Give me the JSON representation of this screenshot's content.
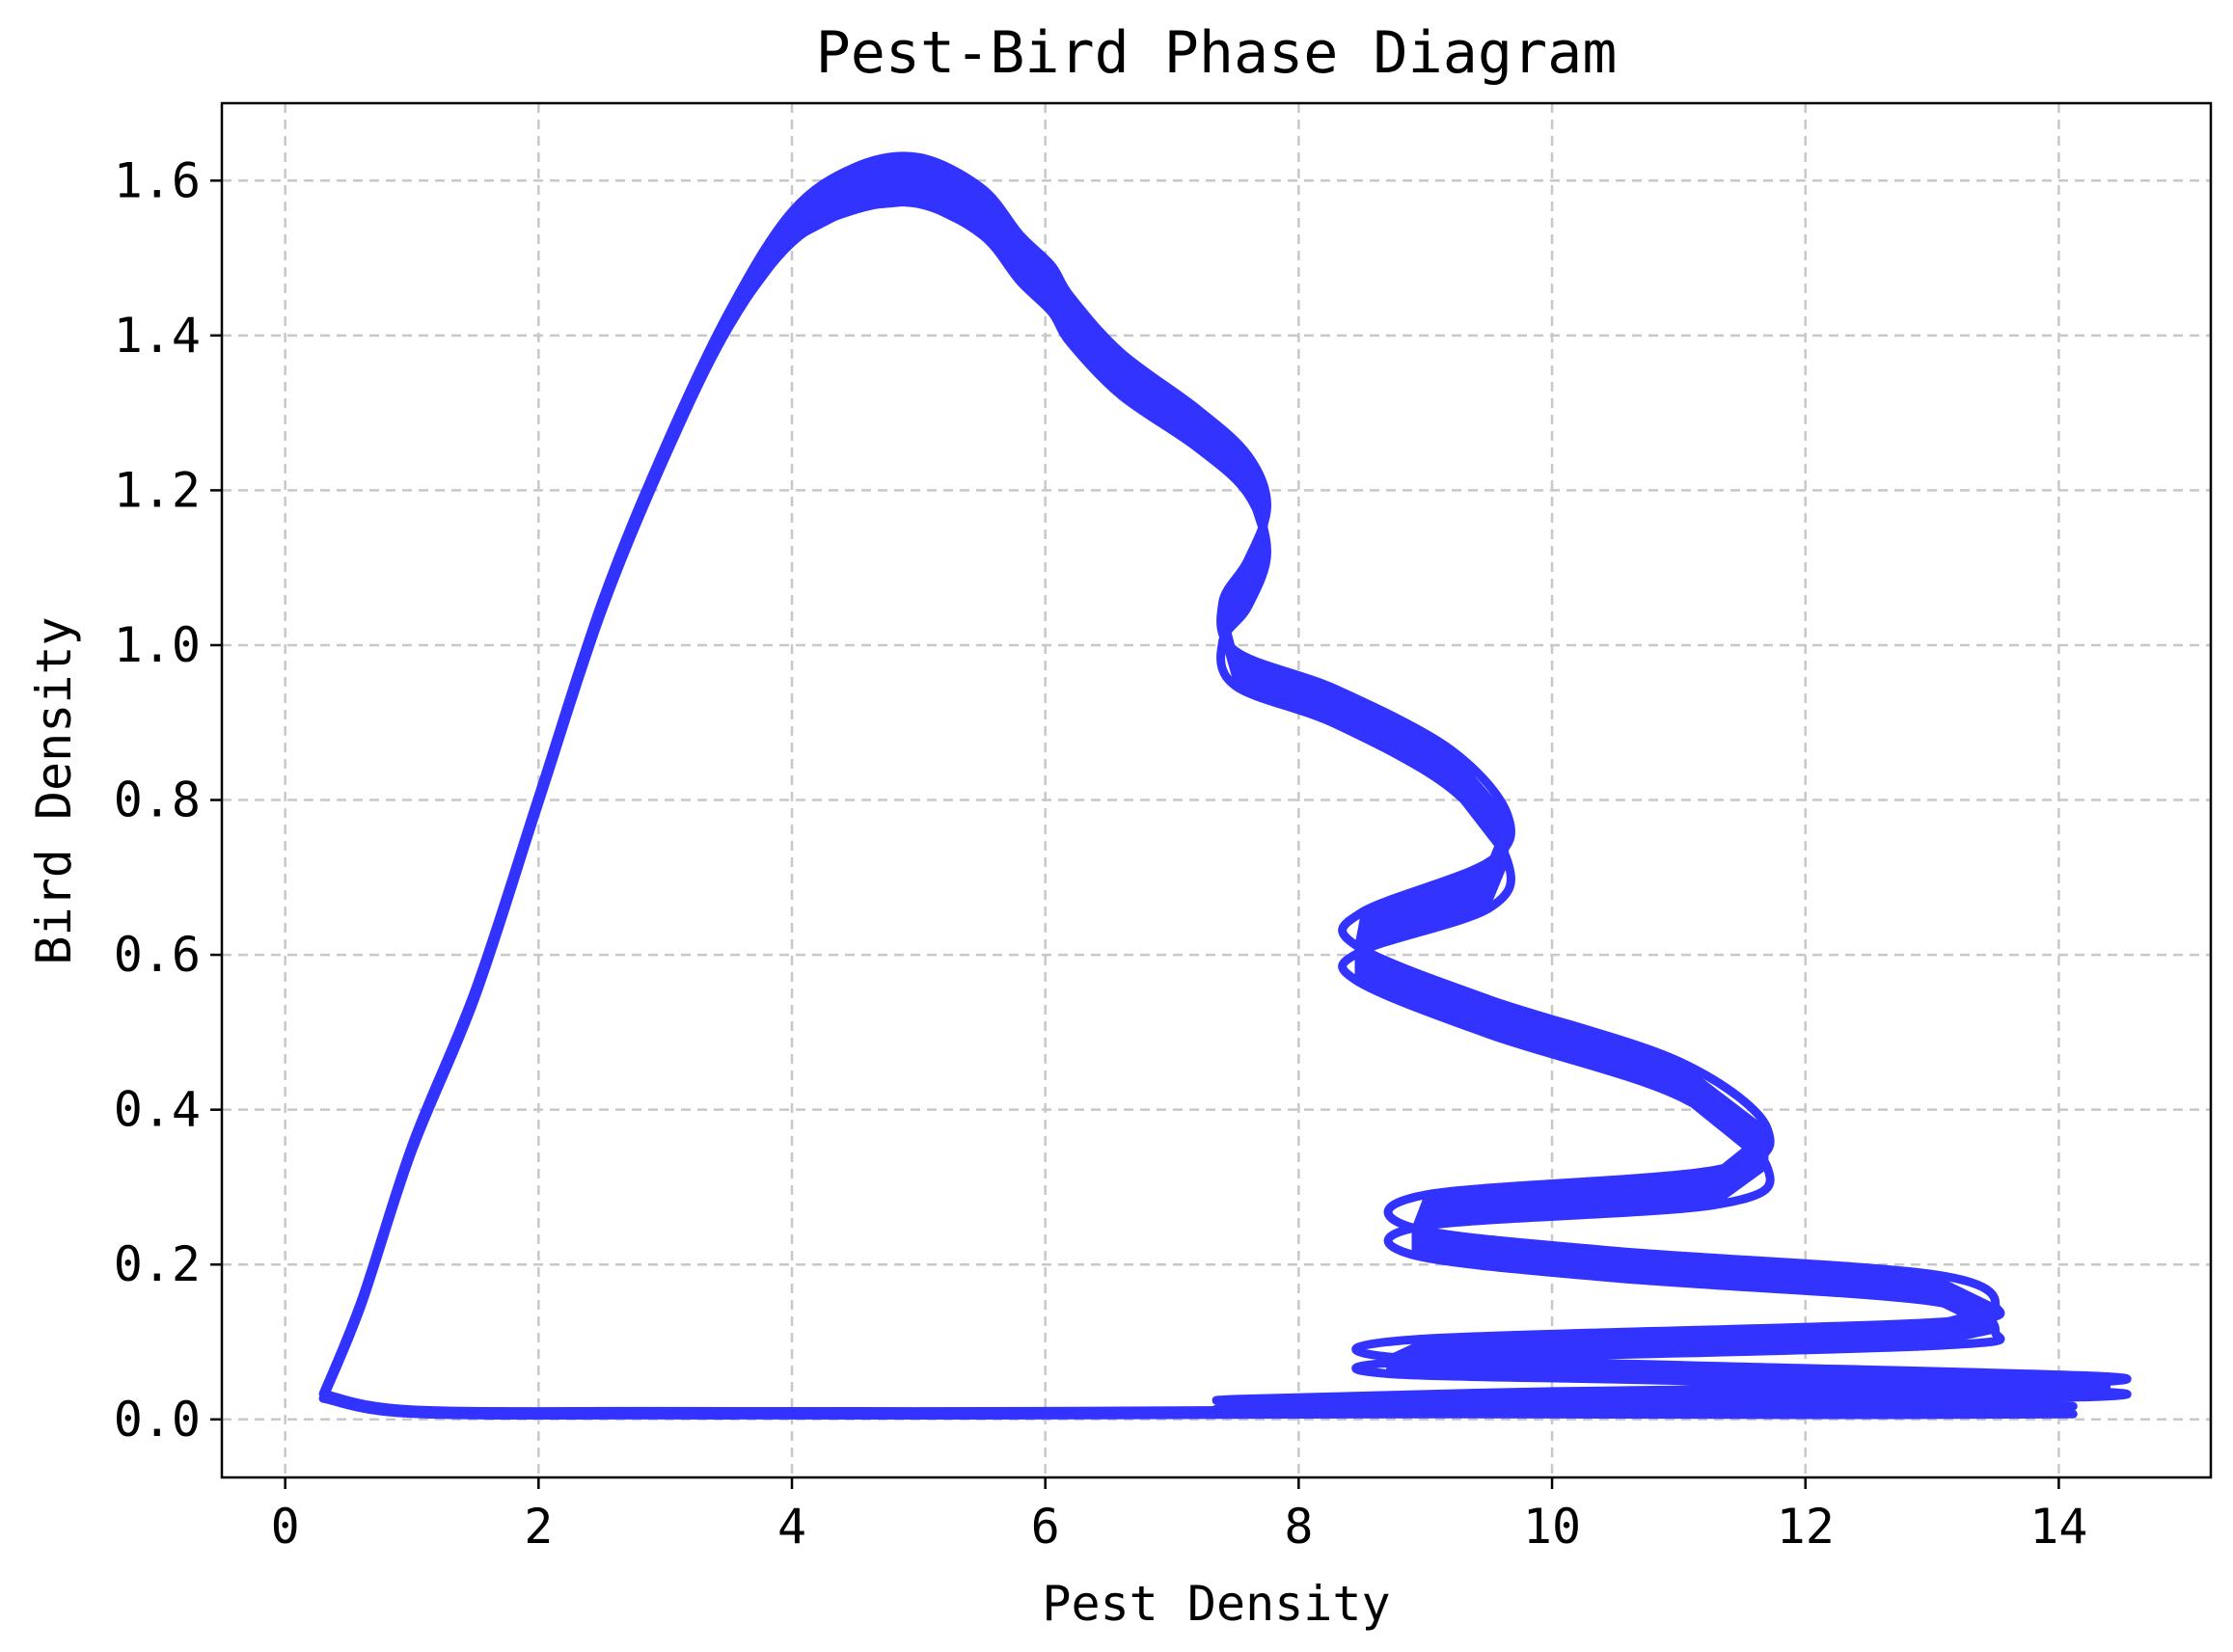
{
  "chart_data": {
    "type": "line",
    "title": "Pest-Bird Phase Diagram",
    "xlabel": "Pest Density",
    "ylabel": "Bird Density",
    "xlim": [
      -0.5,
      15.2
    ],
    "ylim": [
      -0.075,
      1.7
    ],
    "xticks": [
      0,
      2,
      4,
      6,
      8,
      10,
      12,
      14
    ],
    "xtick_labels": [
      "0",
      "2",
      "4",
      "6",
      "8",
      "10",
      "12",
      "14"
    ],
    "yticks": [
      0.0,
      0.2,
      0.4,
      0.6,
      0.8,
      1.0,
      1.2,
      1.4,
      1.6
    ],
    "ytick_labels": [
      "0.0",
      "0.2",
      "0.4",
      "0.6",
      "0.8",
      "1.0",
      "1.2",
      "1.4",
      "1.6"
    ],
    "grid": true,
    "legend": "none",
    "series": [
      {
        "color": "#3333ff",
        "x": [
          0.3,
          0.6,
          1.0,
          1.5,
          2.0,
          2.5,
          3.0,
          3.5,
          4.0,
          4.5,
          5.0,
          5.5,
          5.8,
          6.05,
          6.2,
          6.6,
          7.2,
          7.6,
          7.75,
          7.6,
          7.4,
          7.5,
          8.3,
          9.2,
          9.65,
          9.5,
          8.5,
          8.45,
          9.5,
          11.0,
          11.7,
          11.3,
          9.0,
          8.9,
          10.5,
          13.0,
          13.5,
          13.0,
          9.0,
          8.7,
          11.0,
          14.4,
          13.5,
          10.0,
          7.5,
          8.0,
          11.0,
          14.1,
          12.0,
          9.0,
          6.0,
          3.0,
          1.0,
          0.3
        ],
        "y": [
          0.03,
          0.15,
          0.35,
          0.55,
          0.8,
          1.05,
          1.25,
          1.42,
          1.54,
          1.59,
          1.6,
          1.56,
          1.5,
          1.46,
          1.42,
          1.35,
          1.28,
          1.22,
          1.15,
          1.08,
          1.03,
          0.97,
          0.92,
          0.84,
          0.75,
          0.69,
          0.63,
          0.59,
          0.52,
          0.44,
          0.35,
          0.3,
          0.27,
          0.23,
          0.2,
          0.17,
          0.13,
          0.11,
          0.09,
          0.07,
          0.06,
          0.045,
          0.035,
          0.028,
          0.02,
          0.018,
          0.015,
          0.012,
          0.01,
          0.01,
          0.008,
          0.008,
          0.01,
          0.03
        ],
        "band_width": [
          0.006,
          0.008,
          0.01,
          0.012,
          0.012,
          0.014,
          0.016,
          0.02,
          0.04,
          0.055,
          0.06,
          0.06,
          0.06,
          0.06,
          0.06,
          0.055,
          0.05,
          0.05,
          0.06,
          0.06,
          0.05,
          0.045,
          0.045,
          0.05,
          0.06,
          0.06,
          0.05,
          0.045,
          0.045,
          0.045,
          0.05,
          0.045,
          0.04,
          0.035,
          0.035,
          0.035,
          0.035,
          0.03,
          0.028,
          0.022,
          0.02,
          0.02,
          0.018,
          0.016,
          0.012,
          0.01,
          0.01,
          0.01,
          0.008,
          0.006,
          0.005,
          0.005,
          0.005,
          0.006
        ]
      }
    ]
  }
}
